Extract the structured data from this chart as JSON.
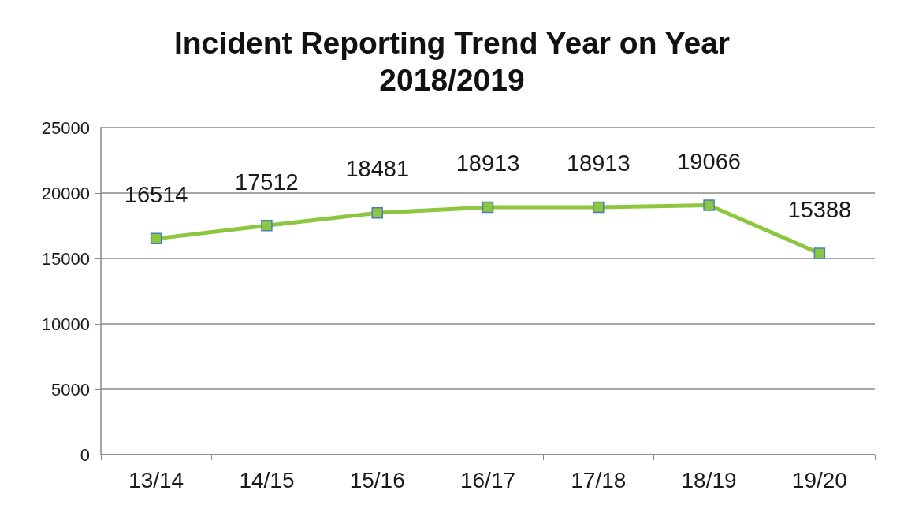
{
  "chart_data": {
    "type": "line",
    "title": "Incident Reporting Trend Year on Year",
    "subtitle": "2018/2019",
    "categories": [
      "13/14",
      "14/15",
      "15/16",
      "16/17",
      "17/18",
      "18/19",
      "19/20"
    ],
    "series": [
      {
        "color": "#8dc63f",
        "values": [
          16514,
          17512,
          18481,
          18913,
          18913,
          19066,
          15388
        ]
      }
    ],
    "ylim": [
      0,
      25000
    ],
    "yticks": [
      0,
      5000,
      10000,
      15000,
      20000,
      25000
    ],
    "grid": "y",
    "marker": "square",
    "line_style": "solid",
    "data_labels": true
  }
}
